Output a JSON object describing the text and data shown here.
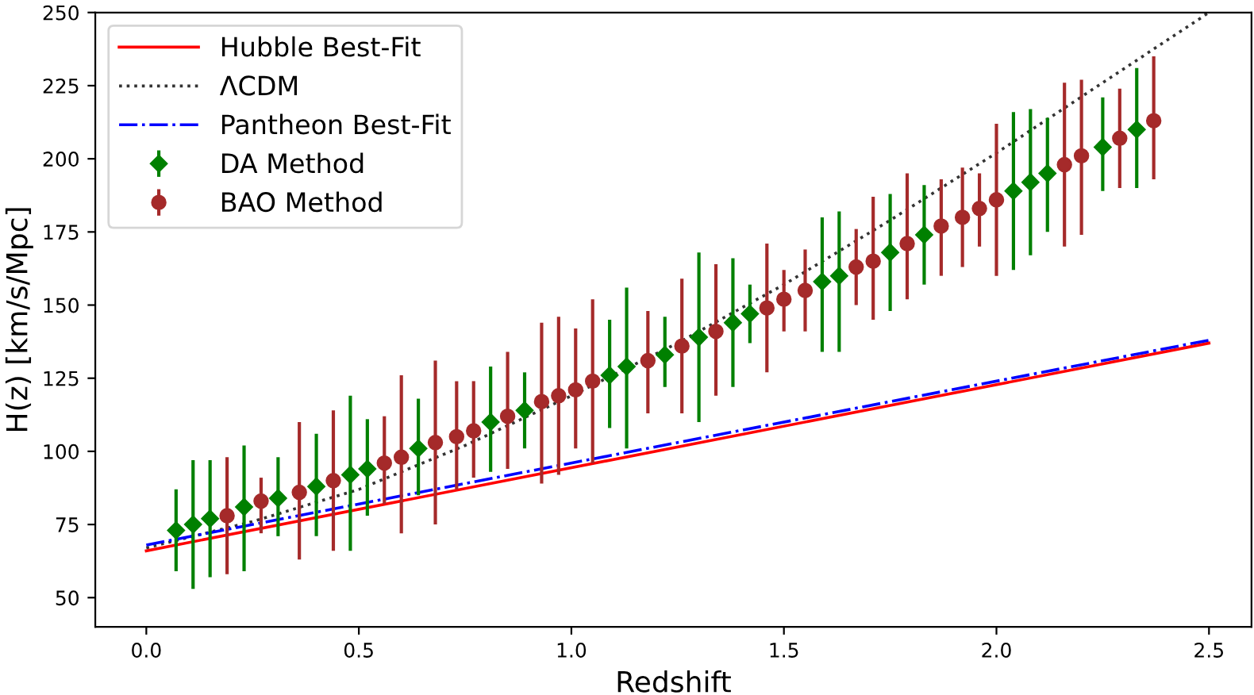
{
  "chart_data": {
    "type": "scatter",
    "xlabel": "Redshift",
    "ylabel": "H(z) [km/s/Mpc]",
    "xlim": [
      -0.12,
      2.6
    ],
    "ylim": [
      40,
      250
    ],
    "xticks": [
      {
        "value": 0,
        "label": "0.0"
      },
      0.5,
      {
        "value": 1,
        "label": "1.0"
      },
      1.5,
      {
        "value": 2,
        "label": "2.0"
      },
      2.5
    ],
    "yticks": [
      50,
      75,
      100,
      125,
      150,
      175,
      200,
      225,
      250
    ],
    "grid": false,
    "legend": "top left",
    "series": [
      {
        "name": "Hubble Best-Fit",
        "type": "line",
        "color": "#ff0000",
        "line_style": "solid",
        "marker": "none",
        "x": [
          0.0,
          2.5
        ],
        "values": [
          66,
          137
        ]
      },
      {
        "name": "ΛCDM",
        "type": "line",
        "color": "#333333",
        "line_style": "dotted",
        "marker": "none",
        "x": [
          0.0,
          0.25,
          0.5,
          0.75,
          1.0,
          1.25,
          1.5,
          1.75,
          2.0,
          2.25,
          2.5
        ],
        "values": [
          67,
          76,
          87,
          102,
          119,
          137,
          157,
          179,
          202,
          226,
          250
        ]
      },
      {
        "name": "Pantheon Best-Fit",
        "type": "line",
        "color": "#0000ff",
        "line_style": "dashdot",
        "marker": "none",
        "x": [
          0.0,
          2.5
        ],
        "values": [
          68,
          138
        ]
      },
      {
        "name": "DA Method",
        "color": "#008000",
        "marker": "diamond",
        "x": [
          0.07,
          0.11,
          0.15,
          0.23,
          0.31,
          0.4,
          0.48,
          0.52,
          0.64,
          0.81,
          0.89,
          1.09,
          1.13,
          1.22,
          1.3,
          1.38,
          1.42,
          1.59,
          1.63,
          1.75,
          1.83,
          2.04,
          2.08,
          2.12,
          2.25,
          2.33
        ],
        "values": [
          73,
          75,
          77,
          81,
          84,
          88,
          92,
          94,
          101,
          110,
          114,
          126,
          129,
          133,
          139,
          144,
          147,
          158,
          160,
          168,
          174,
          189,
          192,
          195,
          204,
          210
        ],
        "errors": [
          [
            59,
            87
          ],
          [
            53,
            97
          ],
          [
            57,
            97
          ],
          [
            59,
            102
          ],
          [
            71,
            98
          ],
          [
            71,
            106
          ],
          [
            66,
            119
          ],
          [
            78,
            111
          ],
          [
            85,
            118
          ],
          [
            93,
            129
          ],
          [
            101,
            127
          ],
          [
            108,
            145
          ],
          [
            101,
            156
          ],
          [
            122,
            146
          ],
          [
            110,
            168
          ],
          [
            122,
            166
          ],
          [
            137,
            157
          ],
          [
            134,
            180
          ],
          [
            134,
            182
          ],
          [
            148,
            188
          ],
          [
            157,
            191
          ],
          [
            162,
            216
          ],
          [
            167,
            217
          ],
          [
            175,
            214
          ],
          [
            189,
            221
          ],
          [
            190,
            231
          ]
        ]
      },
      {
        "name": "BAO Method",
        "color": "#a52a2a",
        "marker": "circle",
        "x": [
          0.19,
          0.27,
          0.36,
          0.44,
          0.56,
          0.6,
          0.68,
          0.73,
          0.77,
          0.85,
          0.93,
          0.97,
          1.01,
          1.05,
          1.18,
          1.26,
          1.34,
          1.46,
          1.5,
          1.55,
          1.67,
          1.71,
          1.79,
          1.87,
          1.92,
          1.96,
          2.0,
          2.16,
          2.2,
          2.29,
          2.37
        ],
        "values": [
          78,
          83,
          86,
          90,
          96,
          98,
          103,
          105,
          107,
          112,
          117,
          119,
          121,
          124,
          131,
          136,
          141,
          149,
          152,
          155,
          163,
          165,
          171,
          177,
          180,
          183,
          186,
          198,
          201,
          207,
          213
        ],
        "errors": [
          [
            58,
            98
          ],
          [
            72,
            91
          ],
          [
            63,
            110
          ],
          [
            66,
            114
          ],
          [
            82,
            112
          ],
          [
            72,
            126
          ],
          [
            75,
            131
          ],
          [
            87,
            124
          ],
          [
            91,
            124
          ],
          [
            94,
            134
          ],
          [
            89,
            144
          ],
          [
            92,
            146
          ],
          [
            101,
            142
          ],
          [
            96,
            152
          ],
          [
            113,
            148
          ],
          [
            113,
            159
          ],
          [
            119,
            164
          ],
          [
            127,
            171
          ],
          [
            141,
            162
          ],
          [
            141,
            169
          ],
          [
            150,
            176
          ],
          [
            145,
            187
          ],
          [
            152,
            195
          ],
          [
            160,
            193
          ],
          [
            163,
            197
          ],
          [
            170,
            195
          ],
          [
            160,
            212
          ],
          [
            170,
            226
          ],
          [
            174,
            227
          ],
          [
            190,
            224
          ],
          [
            193,
            235
          ]
        ]
      }
    ]
  }
}
